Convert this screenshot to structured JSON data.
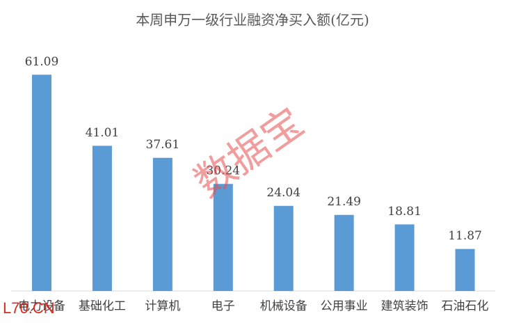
{
  "chart_data": {
    "type": "bar",
    "title": "本周申万一级行业融资净买入额(亿元)",
    "categories": [
      "电力设备",
      "基础化工",
      "计算机",
      "电子",
      "机械设备",
      "公用事业",
      "建筑装饰",
      "石油石化"
    ],
    "values": [
      61.09,
      41.01,
      37.61,
      30.24,
      24.04,
      21.49,
      18.81,
      11.87
    ],
    "color": "#5b9bd5",
    "ylim": [
      0,
      70
    ],
    "watermark": "数据宝",
    "logo": "L70.CN"
  }
}
